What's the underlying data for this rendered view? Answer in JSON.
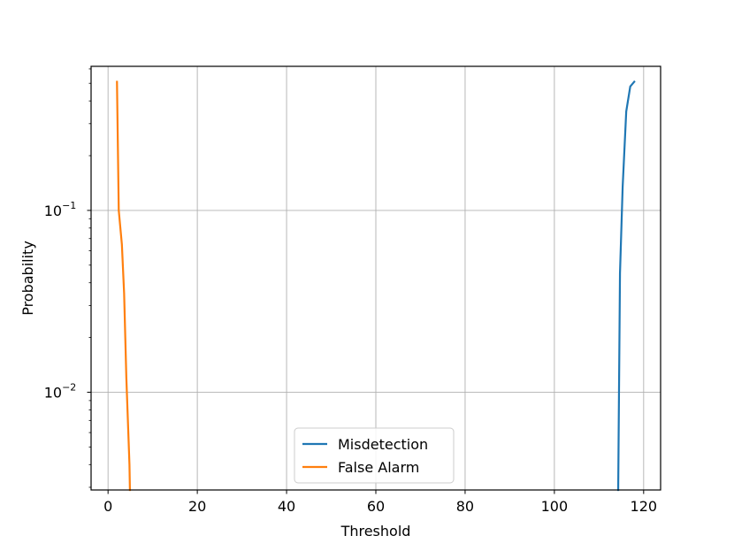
{
  "chart_data": {
    "type": "line",
    "title": "",
    "xlabel": "Threshold",
    "ylabel": "Probability",
    "xlim": [
      -3.8,
      123.8
    ],
    "ylim": [
      0.0029,
      0.62
    ],
    "yscale": "log",
    "grid": true,
    "legend_position": "bottom-center",
    "x_ticks": [
      {
        "value": 0,
        "label": "0"
      },
      {
        "value": 20,
        "label": "20"
      },
      {
        "value": 40,
        "label": "40"
      },
      {
        "value": 60,
        "label": "60"
      },
      {
        "value": 80,
        "label": "80"
      },
      {
        "value": 100,
        "label": "100"
      },
      {
        "value": 120,
        "label": "120"
      }
    ],
    "y_ticks": [
      {
        "value": 0.1,
        "base": "10",
        "exp": "−1"
      },
      {
        "value": 0.01,
        "base": "10",
        "exp": "−2"
      }
    ],
    "series": [
      {
        "name": "Misdetection",
        "color": "#1f77b4",
        "x": [
          114.3,
          114.7,
          115.3,
          116.1,
          117.0,
          117.9
        ],
        "y": [
          0.0029,
          0.045,
          0.135,
          0.35,
          0.48,
          0.51
        ]
      },
      {
        "name": "False Alarm",
        "color": "#ff7f0e",
        "x": [
          2.0,
          2.4,
          3.1,
          3.6,
          4.1,
          4.8,
          4.9
        ],
        "y": [
          0.51,
          0.1,
          0.065,
          0.035,
          0.012,
          0.004,
          0.0029
        ]
      }
    ]
  }
}
